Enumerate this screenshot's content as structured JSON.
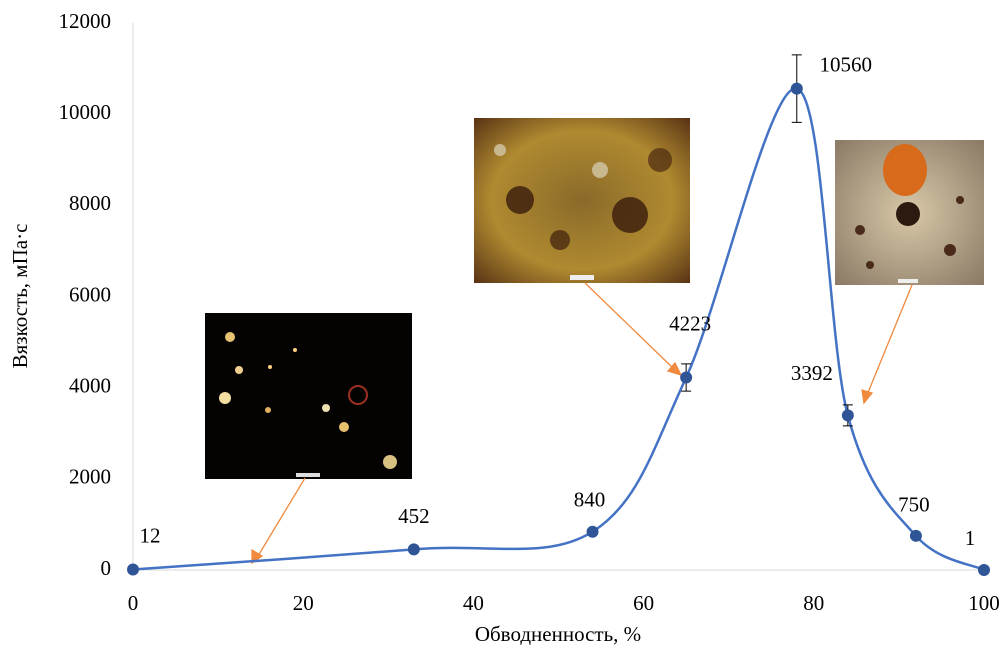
{
  "chart_data": {
    "type": "line",
    "xlabel": "Обводненность, %",
    "ylabel": "Вязкость, мПа·с",
    "x": [
      0,
      33,
      54,
      65,
      78,
      84,
      92,
      100
    ],
    "series": [
      {
        "color": "#4472c4",
        "marker_color": "#2f5597",
        "values": [
          12,
          452,
          840,
          4223,
          10560,
          3392,
          750,
          1
        ],
        "errors": [
          null,
          null,
          null,
          300,
          740,
          230,
          null,
          null
        ]
      }
    ],
    "xlim": [
      0,
      100
    ],
    "xticks": [
      0,
      20,
      40,
      60,
      80,
      100
    ],
    "ylim": [
      0,
      12000
    ],
    "yticks": [
      0,
      2000,
      4000,
      6000,
      8000,
      10000,
      12000
    ],
    "grid": false,
    "smooth": true,
    "data_labels": true
  }
}
